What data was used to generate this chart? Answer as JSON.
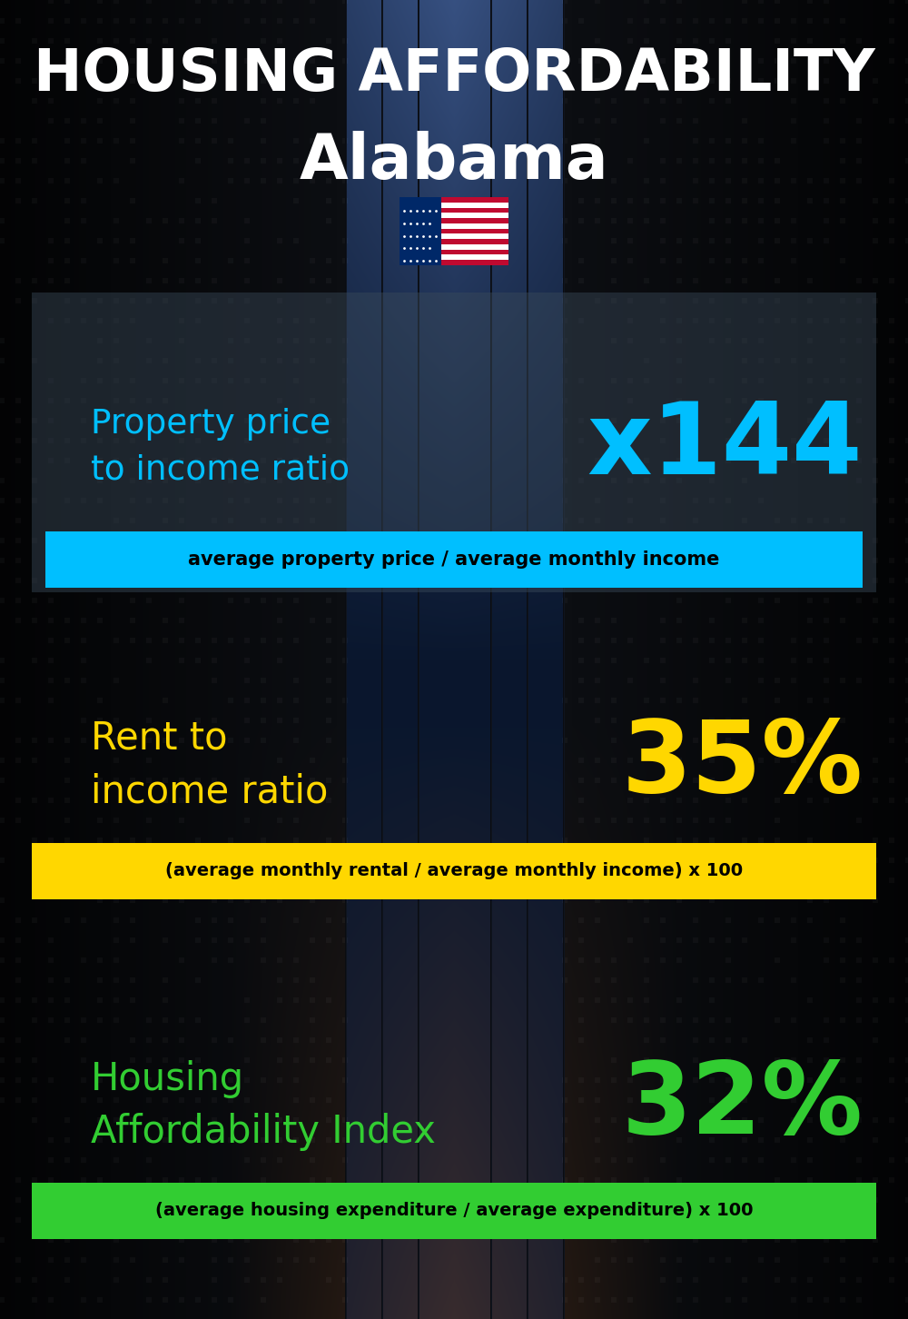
{
  "title_line1": "HOUSING AFFORDABILITY",
  "title_line2": "Alabama",
  "section1_label": "Property price\nto income ratio",
  "section1_value": "x144",
  "section1_label_color": "#00bfff",
  "section1_value_color": "#00bfff",
  "section1_banner": "average property price / average monthly income",
  "section1_banner_bg": "#00bfff",
  "section2_label": "Rent to\nincome ratio",
  "section2_value": "35%",
  "section2_label_color": "#ffd700",
  "section2_value_color": "#ffd700",
  "section2_banner": "(average monthly rental / average monthly income) x 100",
  "section2_banner_bg": "#ffd700",
  "section3_label": "Housing\nAffordability Index",
  "section3_value": "32%",
  "section3_label_color": "#32cd32",
  "section3_value_color": "#32cd32",
  "section3_banner": "(average housing expenditure / average expenditure) x 100",
  "section3_banner_bg": "#32cd32",
  "bg_color": "#0a1628",
  "title_color": "#ffffff",
  "banner_text_color": "#000000",
  "fig_width": 10.0,
  "fig_height": 14.52
}
